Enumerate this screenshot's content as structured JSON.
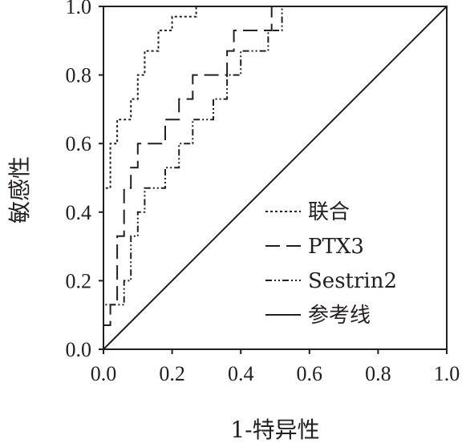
{
  "chart_data": {
    "type": "line",
    "xlabel": "1-特异性",
    "ylabel": "敏感性",
    "xlim": [
      0,
      1
    ],
    "ylim": [
      0,
      1
    ],
    "x_ticks": [
      "0.0",
      "0.2",
      "0.4",
      "0.6",
      "0.8",
      "1.0"
    ],
    "y_ticks": [
      "0.0",
      "0.2",
      "0.4",
      "0.6",
      "0.8",
      "1.0"
    ],
    "grid": false,
    "legend_position": "lower-right",
    "series": [
      {
        "name": "联合",
        "style": "dotted",
        "color": "#231f20",
        "points": [
          [
            0,
            0
          ],
          [
            0,
            0.47
          ],
          [
            0.02,
            0.47
          ],
          [
            0.02,
            0.6
          ],
          [
            0.04,
            0.6
          ],
          [
            0.04,
            0.67
          ],
          [
            0.08,
            0.67
          ],
          [
            0.08,
            0.73
          ],
          [
            0.1,
            0.73
          ],
          [
            0.1,
            0.8
          ],
          [
            0.12,
            0.8
          ],
          [
            0.12,
            0.87
          ],
          [
            0.16,
            0.87
          ],
          [
            0.16,
            0.93
          ],
          [
            0.2,
            0.93
          ],
          [
            0.2,
            0.97
          ],
          [
            0.27,
            0.97
          ],
          [
            0.27,
            1.0
          ],
          [
            1.0,
            1.0
          ]
        ]
      },
      {
        "name": "PTX3",
        "style": "dashed",
        "color": "#231f20",
        "points": [
          [
            0,
            0
          ],
          [
            0,
            0.07
          ],
          [
            0.02,
            0.07
          ],
          [
            0.02,
            0.13
          ],
          [
            0.04,
            0.13
          ],
          [
            0.04,
            0.33
          ],
          [
            0.06,
            0.33
          ],
          [
            0.06,
            0.47
          ],
          [
            0.08,
            0.47
          ],
          [
            0.08,
            0.53
          ],
          [
            0.1,
            0.53
          ],
          [
            0.1,
            0.6
          ],
          [
            0.18,
            0.6
          ],
          [
            0.18,
            0.67
          ],
          [
            0.22,
            0.67
          ],
          [
            0.22,
            0.73
          ],
          [
            0.26,
            0.73
          ],
          [
            0.26,
            0.8
          ],
          [
            0.36,
            0.8
          ],
          [
            0.36,
            0.87
          ],
          [
            0.38,
            0.87
          ],
          [
            0.38,
            0.93
          ],
          [
            0.49,
            0.93
          ],
          [
            0.49,
            1.0
          ],
          [
            1.0,
            1.0
          ]
        ]
      },
      {
        "name": "Sestrin2",
        "style": "dash-dot-dot",
        "color": "#231f20",
        "points": [
          [
            0,
            0
          ],
          [
            0,
            0.13
          ],
          [
            0.06,
            0.13
          ],
          [
            0.06,
            0.2
          ],
          [
            0.08,
            0.2
          ],
          [
            0.08,
            0.33
          ],
          [
            0.1,
            0.33
          ],
          [
            0.1,
            0.4
          ],
          [
            0.12,
            0.4
          ],
          [
            0.12,
            0.47
          ],
          [
            0.18,
            0.47
          ],
          [
            0.18,
            0.53
          ],
          [
            0.22,
            0.53
          ],
          [
            0.22,
            0.6
          ],
          [
            0.26,
            0.6
          ],
          [
            0.26,
            0.67
          ],
          [
            0.32,
            0.67
          ],
          [
            0.32,
            0.73
          ],
          [
            0.36,
            0.73
          ],
          [
            0.36,
            0.8
          ],
          [
            0.4,
            0.8
          ],
          [
            0.4,
            0.87
          ],
          [
            0.48,
            0.87
          ],
          [
            0.48,
            0.93
          ],
          [
            0.52,
            0.93
          ],
          [
            0.52,
            1.0
          ],
          [
            1.0,
            1.0
          ]
        ]
      },
      {
        "name": "参考线",
        "style": "solid",
        "color": "#231f20",
        "points": [
          [
            0,
            0
          ],
          [
            1,
            1
          ]
        ]
      }
    ]
  }
}
